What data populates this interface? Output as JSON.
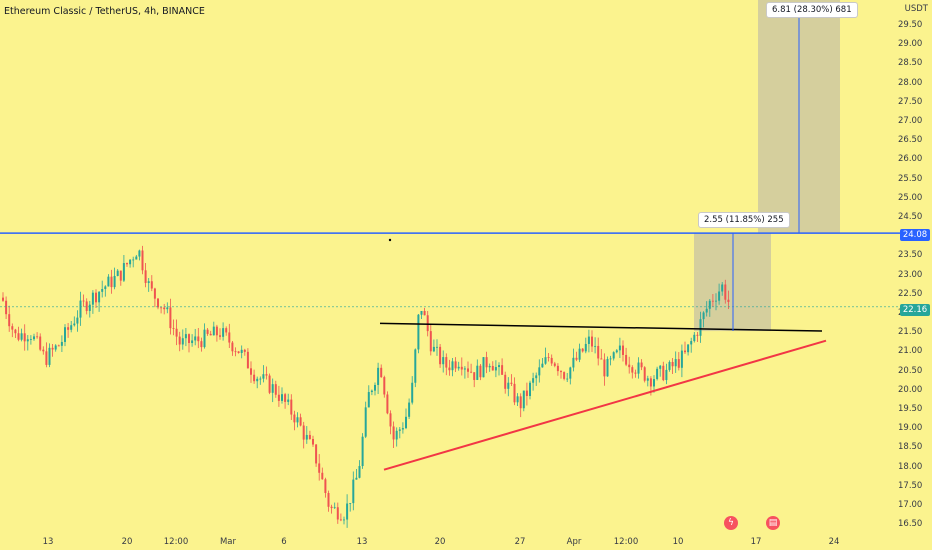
{
  "title": "Ethereum Classic / TetherUS, 4h, BINANCE",
  "axis_unit": "USDT",
  "price_ticks": [
    "29.50",
    "29.00",
    "28.50",
    "28.00",
    "27.50",
    "27.00",
    "26.50",
    "26.00",
    "25.50",
    "25.00",
    "24.50",
    "23.50",
    "23.00",
    "22.50",
    "22.00",
    "21.50",
    "21.00",
    "20.50",
    "20.00",
    "19.50",
    "19.00",
    "18.50",
    "18.00",
    "17.50",
    "17.00",
    "16.50"
  ],
  "time_labels": [
    "13",
    "20",
    "12:00",
    "Mar",
    "6",
    "13",
    "20",
    "27",
    "Apr",
    "12:00",
    "10",
    "17",
    "24"
  ],
  "resistance_badge": "24.08",
  "last_price_badge": "22.16",
  "measure_small": "2.55 (11.85%) 255",
  "measure_large": "6.81 (28.30%) 681",
  "colors": {
    "background": "#fbf38e",
    "up_candle": "#26a69a",
    "down_candle": "#ef5350",
    "resistance_line": "#2962ff",
    "support_trendline": "#f23645",
    "neckline": "#000000",
    "target_zone": "#c8c3a2",
    "last_price": "#26a69a"
  },
  "icons": {
    "lightning": "lightning-icon",
    "flag": "us-flag-icon"
  }
}
